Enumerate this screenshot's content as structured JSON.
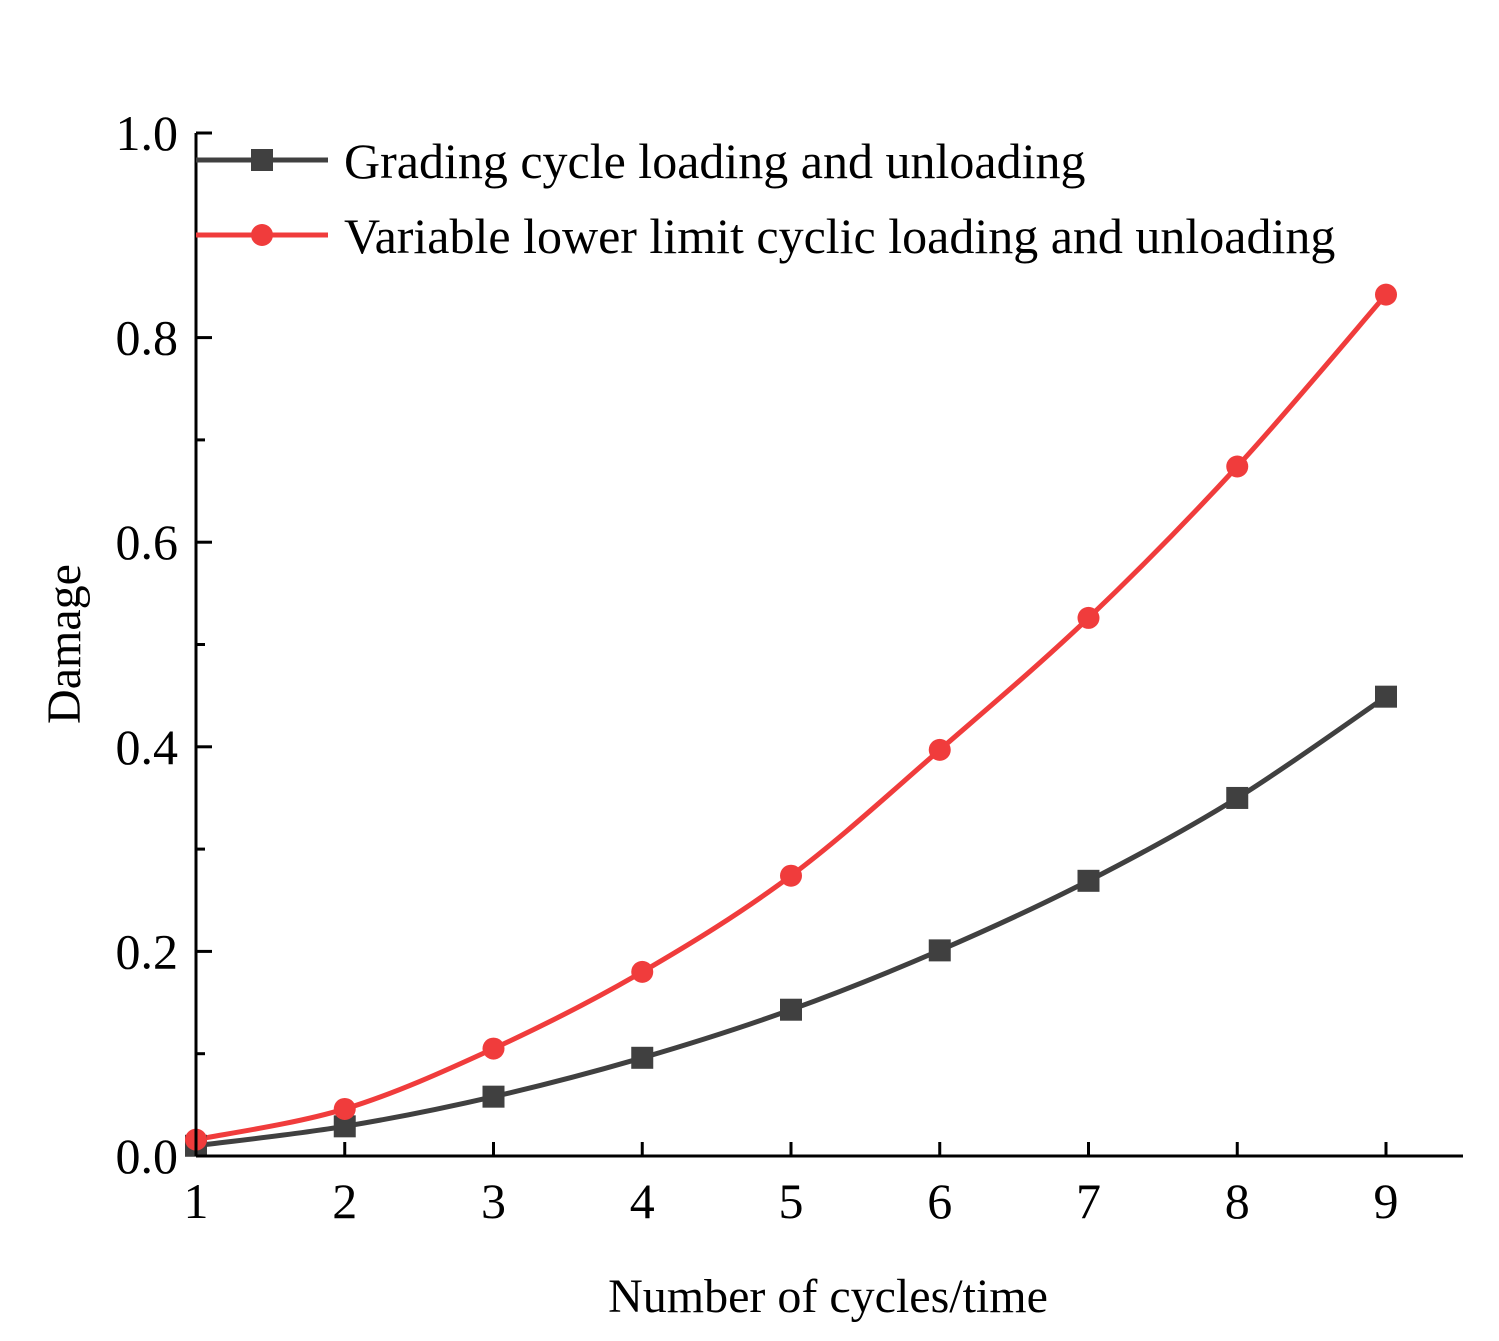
{
  "chart_data": {
    "type": "line",
    "xlabel": "Number of cycles/time",
    "ylabel": "Damage",
    "xlim": [
      1,
      9.5
    ],
    "ylim": [
      0,
      1.0
    ],
    "x_ticks": [
      "1",
      "2",
      "3",
      "4",
      "5",
      "6",
      "7",
      "8",
      "9"
    ],
    "y_ticks": [
      "0.0",
      "0.2",
      "0.4",
      "0.6",
      "0.8",
      "1.0"
    ],
    "x": [
      1,
      2,
      3,
      4,
      5,
      6,
      7,
      8,
      9
    ],
    "series": [
      {
        "name": "Grading cycle loading and unloading",
        "color": "#404040",
        "marker": "square",
        "values": [
          0.01,
          0.029,
          0.058,
          0.096,
          0.143,
          0.201,
          0.269,
          0.35,
          0.449
        ]
      },
      {
        "name": "Variable lower limit cyclic loading and unloading",
        "color": "#f03c3c",
        "marker": "circle",
        "values": [
          0.016,
          0.046,
          0.105,
          0.18,
          0.274,
          0.397,
          0.526,
          0.674,
          0.842
        ]
      }
    ],
    "legend_position": "top-left",
    "grid": false
  }
}
